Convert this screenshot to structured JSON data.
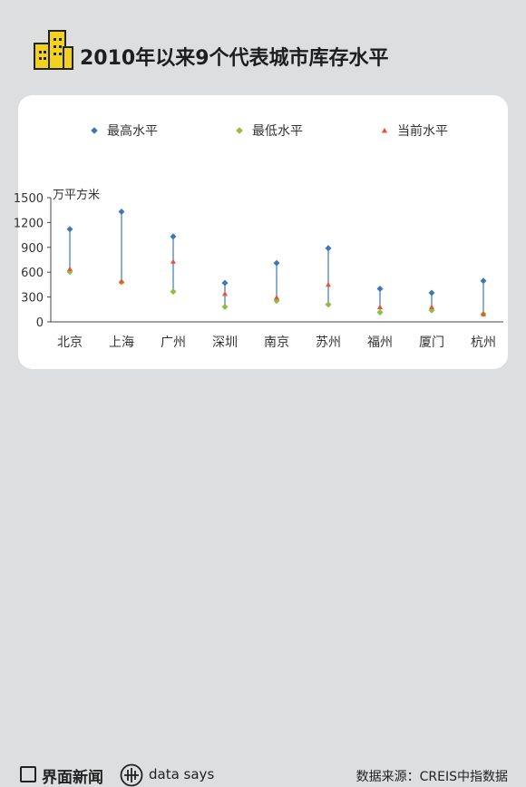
{
  "header": {
    "title": "2010年以来9个代表城市库存水平"
  },
  "chart_data": {
    "type": "scatter",
    "ylabel": "万平方米",
    "ylim": [
      0,
      1500
    ],
    "yticks": [
      0,
      300,
      600,
      900,
      1200,
      1500
    ],
    "categories": [
      "北京",
      "上海",
      "广州",
      "深圳",
      "南京",
      "苏州",
      "福州",
      "厦门",
      "杭州"
    ],
    "legend_position": "top",
    "series": [
      {
        "name": "最高水平",
        "color": "#3b79b4",
        "marker": "diamond",
        "values": [
          1120,
          1330,
          1030,
          470,
          710,
          890,
          400,
          350,
          495
        ]
      },
      {
        "name": "最低水平",
        "color": "#8fbf3f",
        "marker": "diamond",
        "values": [
          605,
          480,
          365,
          180,
          255,
          210,
          115,
          140,
          95
        ]
      },
      {
        "name": "当前水平",
        "color": "#e8553a",
        "marker": "triangle",
        "values": [
          640,
          490,
          730,
          340,
          295,
          450,
          180,
          180,
          95
        ]
      }
    ],
    "range_line_color": "#3b79b4"
  },
  "footer": {
    "brand": "界面新闻",
    "datasays": "data says",
    "source": "数据来源：CREIS中指数据"
  }
}
